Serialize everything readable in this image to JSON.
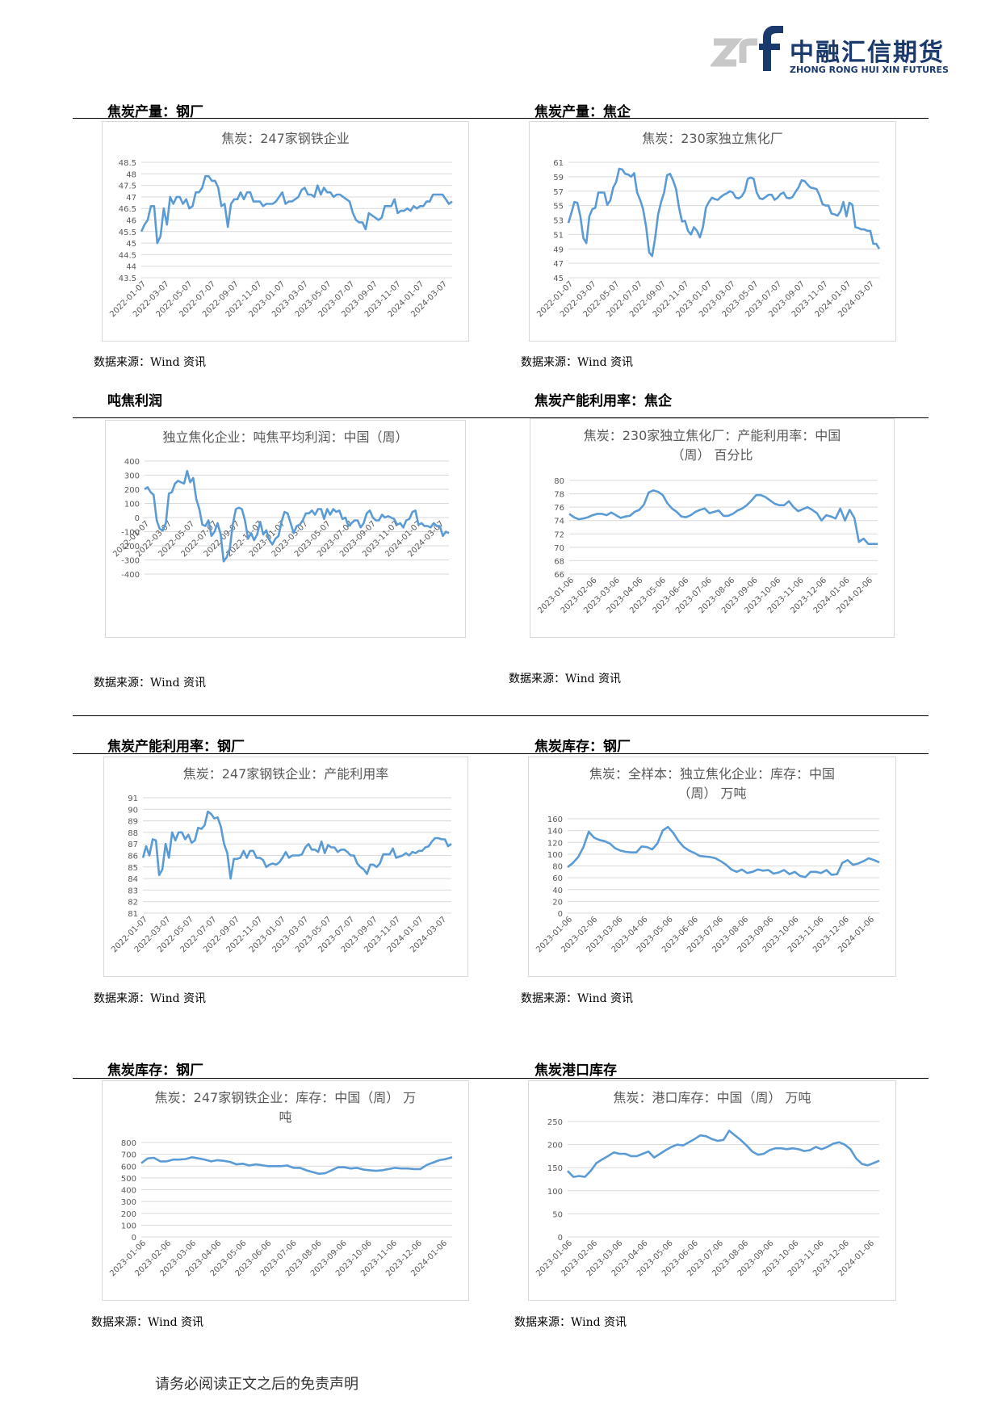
{
  "header": {
    "logo_cn": "中融汇信期货",
    "logo_en": "ZHONG RONG HUI XIN FUTURES",
    "logo_mark": "zrf"
  },
  "sections": [
    {
      "title": "焦炭产量：钢厂",
      "source": "数据来源：Wind 资讯"
    },
    {
      "title": "焦炭产量：焦企",
      "source": "数据来源：Wind 资讯"
    },
    {
      "title": "吨焦利润",
      "source": "数据来源：Wind 资讯"
    },
    {
      "title": "焦炭产能利用率：焦企",
      "source": "数据来源：Wind 资讯"
    },
    {
      "title": "焦炭产能利用率：钢厂",
      "source": "数据来源：Wind 资讯"
    },
    {
      "title": "焦炭库存：钢厂",
      "source": "数据来源：Wind 资讯"
    },
    {
      "title": "焦炭库存：钢厂",
      "source": "数据来源：Wind 资讯"
    },
    {
      "title": "焦炭港口库存",
      "source": "数据来源：Wind 资讯"
    }
  ],
  "footer": "请务必阅读正文之后的免责声明",
  "colors": {
    "line": "#5b9bd5",
    "grid": "#d9d9d9",
    "axis_text": "#595959",
    "brand": "#1a3a6e"
  },
  "chart_data": [
    {
      "type": "line",
      "title": [
        "焦炭：247家钢铁企业"
      ],
      "ylim": [
        43.5,
        48.5
      ],
      "yticks": [
        43.5,
        44,
        44.5,
        45,
        45.5,
        46,
        46.5,
        47,
        47.5,
        48,
        48.5
      ],
      "xticks": [
        "2022-01-07",
        "2022-03-07",
        "2022-05-07",
        "2022-07-07",
        "2022-09-07",
        "2022-11-07",
        "2023-01-07",
        "2023-03-07",
        "2023-05-07",
        "2023-07-07",
        "2023-09-07",
        "2023-11-07",
        "2024-01-07",
        "2024-03-07"
      ],
      "values": [
        45.5,
        45.8,
        46.0,
        46.6,
        46.6,
        45.0,
        45.3,
        46.5,
        45.8,
        47.0,
        46.7,
        47.0,
        47.0,
        46.7,
        46.9,
        46.5,
        46.6,
        47.2,
        47.2,
        47.4,
        47.9,
        47.9,
        47.7,
        47.7,
        47.4,
        46.6,
        46.7,
        45.7,
        46.7,
        46.9,
        46.9,
        47.2,
        46.9,
        47.2,
        47.2,
        46.8,
        46.8,
        46.8,
        46.6,
        46.7,
        46.7,
        46.7,
        46.8,
        47.0,
        47.2,
        46.7,
        46.8,
        46.8,
        46.9,
        47.0,
        47.3,
        47.4,
        47.1,
        47.1,
        47.0,
        47.5,
        47.1,
        47.4,
        47.2,
        47.2,
        47.0,
        47.1,
        47.1,
        47.0,
        46.9,
        46.8,
        46.3,
        46.0,
        45.9,
        45.9,
        45.6,
        46.3,
        46.2,
        46.1,
        46.0,
        46.1,
        46.6,
        46.6,
        46.6,
        46.9,
        46.3,
        46.4,
        46.4,
        46.5,
        46.4,
        46.6,
        46.5,
        46.6,
        46.6,
        46.8,
        46.8,
        47.1,
        47.1,
        47.1,
        47.1,
        46.9,
        46.7,
        46.8
      ]
    },
    {
      "type": "line",
      "title": [
        "焦炭：230家独立焦化厂"
      ],
      "ylim": [
        45,
        61
      ],
      "yticks": [
        45,
        47,
        49,
        51,
        53,
        55,
        57,
        59,
        61
      ],
      "xticks": [
        "2022-01-07",
        "2022-03-07",
        "2022-05-07",
        "2022-07-07",
        "2022-09-07",
        "2022-11-07",
        "2023-01-07",
        "2023-03-07",
        "2023-05-07",
        "2023-07-07",
        "2023-09-07",
        "2023-11-07",
        "2024-01-07",
        "2024-03-07"
      ],
      "values": [
        52.6,
        54.0,
        55.5,
        55.4,
        53.5,
        50.5,
        49.8,
        53.5,
        54.5,
        54.7,
        56.8,
        56.8,
        56.8,
        55.1,
        55.7,
        57.5,
        58.3,
        60.1,
        60.0,
        59.4,
        59.3,
        59.0,
        59.5,
        56.8,
        55.8,
        54.5,
        52.0,
        48.5,
        48.0,
        50.5,
        53.8,
        55.5,
        56.8,
        59.2,
        59.4,
        58.5,
        57.3,
        54.7,
        52.8,
        52.9,
        51.5,
        51.0,
        52.0,
        51.5,
        50.6,
        52.0,
        54.7,
        55.5,
        56.1,
        55.9,
        55.8,
        56.2,
        56.5,
        56.7,
        57.0,
        56.8,
        56.1,
        56.0,
        56.3,
        57.0,
        58.7,
        58.9,
        58.7,
        56.8,
        56.0,
        55.9,
        56.2,
        56.5,
        56.5,
        55.8,
        56.1,
        56.6,
        56.8,
        56.1,
        56.0,
        56.2,
        56.9,
        57.5,
        58.5,
        58.4,
        57.9,
        57.5,
        57.4,
        57.3,
        56.4,
        55.2,
        55.0,
        55.0,
        53.9,
        53.8,
        53.6,
        54.2,
        55.5,
        53.5,
        55.4,
        55.1,
        52.0,
        51.9,
        51.7,
        51.7,
        51.5,
        51.5,
        49.7,
        49.7,
        49.0
      ]
    },
    {
      "type": "line",
      "title": [
        "独立焦化企业：吨焦平均利润：中国（周）"
      ],
      "ylim": [
        -400,
        400
      ],
      "yticks": [
        -400,
        -300,
        -200,
        -100,
        0,
        100,
        200,
        300,
        400
      ],
      "xticks": [
        "2022-01-07",
        "2022-03-07",
        "2022-05-07",
        "2022-07-07",
        "2022-09-07",
        "2022-11-07",
        "2023-01-07",
        "2023-03-07",
        "2023-05-07",
        "2023-07-07",
        "2023-09-07",
        "2023-11-07",
        "2024-01-07",
        "2024-03-07"
      ],
      "values": [
        200,
        215,
        180,
        160,
        -20,
        -80,
        -90,
        -40,
        170,
        180,
        240,
        260,
        250,
        240,
        330,
        250,
        280,
        130,
        60,
        -50,
        -60,
        -20,
        -130,
        -100,
        -40,
        -120,
        -310,
        -280,
        -220,
        -50,
        60,
        70,
        60,
        -20,
        -150,
        -110,
        -160,
        -120,
        -30,
        -120,
        -90,
        -160,
        -190,
        -150,
        -130,
        -30,
        40,
        30,
        -40,
        -110,
        -60,
        -50,
        -20,
        30,
        30,
        50,
        20,
        60,
        60,
        -10,
        60,
        20,
        60,
        40,
        50,
        -10,
        0,
        -60,
        -40,
        -20,
        -20,
        -70,
        -40,
        30,
        50,
        0,
        -20,
        -20,
        20,
        0,
        10,
        0,
        -10,
        -50,
        -40,
        -70,
        -20,
        -10,
        40,
        50,
        -50,
        -40,
        -60,
        -60,
        -70,
        -40,
        -60,
        -60,
        -130,
        -100,
        -110
      ]
    },
    {
      "type": "line",
      "title": [
        "焦炭：230家独立焦化厂：产能利用率：中国",
        "（周）  百分比"
      ],
      "ylim": [
        66,
        80
      ],
      "yticks": [
        66,
        68,
        70,
        72,
        74,
        76,
        78,
        80
      ],
      "xticks": [
        "2023-01-06",
        "2023-02-06",
        "2023-03-06",
        "2023-04-06",
        "2023-05-06",
        "2023-06-06",
        "2023-07-06",
        "2023-08-06",
        "2023-09-06",
        "2023-10-06",
        "2023-11-06",
        "2023-12-06",
        "2024-01-06",
        "2024-02-06"
      ],
      "values": [
        75.0,
        74.5,
        74.2,
        74.3,
        74.5,
        74.8,
        75.0,
        75.0,
        74.8,
        75.2,
        74.8,
        74.4,
        74.6,
        74.7,
        75.3,
        75.6,
        76.4,
        78.2,
        78.5,
        78.3,
        77.8,
        76.6,
        75.8,
        75.3,
        74.6,
        74.5,
        74.8,
        75.3,
        75.6,
        75.8,
        75.1,
        75.3,
        75.5,
        74.7,
        74.7,
        75.0,
        75.5,
        75.8,
        76.3,
        77.0,
        77.8,
        77.8,
        77.5,
        77.0,
        76.5,
        76.3,
        76.3,
        76.9,
        76.0,
        75.4,
        75.7,
        76.0,
        75.6,
        75.1,
        74.0,
        74.8,
        74.6,
        74.3,
        75.8,
        74.0,
        75.6,
        74.4,
        70.8,
        71.3,
        70.5,
        70.5,
        70.5
      ]
    },
    {
      "type": "line",
      "title": [
        "焦炭：247家钢铁企业：产能利用率"
      ],
      "ylim": [
        81,
        91
      ],
      "yticks": [
        81,
        82,
        83,
        84,
        85,
        86,
        87,
        88,
        89,
        90,
        91
      ],
      "xticks": [
        "2022-01-07",
        "2022-03-07",
        "2022-05-07",
        "2022-07-07",
        "2022-09-07",
        "2022-11-07",
        "2023-01-07",
        "2023-03-07",
        "2023-05-07",
        "2023-07-07",
        "2023-09-07",
        "2023-11-07",
        "2024-01-07",
        "2024-03-07"
      ],
      "values": [
        85.8,
        86.8,
        86.0,
        87.4,
        87.3,
        84.3,
        84.8,
        87.0,
        85.8,
        88.0,
        87.3,
        88.0,
        88.0,
        87.4,
        87.8,
        87.1,
        87.3,
        88.4,
        88.3,
        88.6,
        89.8,
        89.6,
        89.2,
        89.3,
        88.5,
        87.0,
        86.2,
        84.0,
        85.7,
        85.7,
        85.8,
        86.4,
        85.8,
        86.4,
        86.4,
        85.8,
        85.8,
        85.6,
        85.0,
        85.2,
        85.3,
        85.2,
        85.4,
        85.8,
        86.3,
        85.8,
        86.0,
        86.0,
        86.0,
        86.1,
        86.7,
        87.0,
        86.5,
        86.5,
        86.3,
        87.2,
        86.2,
        86.9,
        86.7,
        86.7,
        86.3,
        86.5,
        86.5,
        86.3,
        86.0,
        86.0,
        85.3,
        85.0,
        84.8,
        84.4,
        85.2,
        85.2,
        85.0,
        85.3,
        86.1,
        86.1,
        86.1,
        86.6,
        85.8,
        85.9,
        86.0,
        86.2,
        86.0,
        86.3,
        86.2,
        86.4,
        86.4,
        86.7,
        86.8,
        87.2,
        87.5,
        87.5,
        87.4,
        87.4,
        86.8,
        87.0
      ]
    },
    {
      "type": "line",
      "title": [
        "焦炭：全样本：独立焦化企业：库存：中国",
        "（周） 万吨"
      ],
      "ylim": [
        0,
        160
      ],
      "yticks": [
        0,
        20,
        40,
        60,
        80,
        100,
        120,
        140,
        160
      ],
      "xticks": [
        "2023-01-06",
        "2023-02-06",
        "2023-03-06",
        "2023-04-06",
        "2023-05-06",
        "2023-06-06",
        "2023-07-06",
        "2023-08-06",
        "2023-09-06",
        "2023-10-06",
        "2023-11-06",
        "2023-12-06",
        "2024-01-06"
      ],
      "values": [
        78,
        85,
        95,
        112,
        138,
        128,
        124,
        122,
        118,
        110,
        106,
        104,
        103,
        103,
        113,
        112,
        108,
        118,
        140,
        146,
        136,
        122,
        112,
        106,
        102,
        97,
        96,
        95,
        93,
        88,
        82,
        74,
        70,
        74,
        68,
        70,
        74,
        72,
        73,
        67,
        69,
        73,
        66,
        70,
        63,
        61,
        70,
        70,
        68,
        73,
        65,
        66,
        85,
        90,
        82,
        84,
        88,
        93,
        90,
        86
      ]
    },
    {
      "type": "line",
      "title": [
        "焦炭：247家钢铁企业：库存：中国（周） 万",
        "吨"
      ],
      "ylim": [
        0,
        800
      ],
      "yticks": [
        0,
        100,
        200,
        300,
        400,
        500,
        600,
        700,
        800
      ],
      "xticks": [
        "2023-01-06",
        "2023-02-06",
        "2023-03-06",
        "2023-04-06",
        "2023-05-06",
        "2023-06-06",
        "2023-07-06",
        "2023-08-06",
        "2023-09-06",
        "2023-10-06",
        "2023-11-06",
        "2023-12-06",
        "2024-01-06"
      ],
      "values": [
        625,
        665,
        670,
        640,
        640,
        655,
        655,
        660,
        675,
        665,
        655,
        640,
        650,
        645,
        635,
        615,
        620,
        605,
        615,
        608,
        600,
        600,
        600,
        605,
        585,
        585,
        565,
        550,
        535,
        540,
        565,
        590,
        590,
        580,
        585,
        570,
        565,
        560,
        565,
        575,
        585,
        580,
        580,
        575,
        575,
        610,
        630,
        650,
        660,
        675
      ]
    },
    {
      "type": "line",
      "title": [
        "焦炭：港口库存：中国（周） 万吨"
      ],
      "ylim": [
        0,
        250
      ],
      "yticks": [
        0,
        50,
        100,
        150,
        200,
        250
      ],
      "xticks": [
        "2023-01-06",
        "2023-02-06",
        "2023-03-06",
        "2023-04-06",
        "2023-05-06",
        "2023-06-06",
        "2023-07-06",
        "2023-08-06",
        "2023-09-06",
        "2023-10-06",
        "2023-11-06",
        "2023-12-06",
        "2024-01-06"
      ],
      "values": [
        143,
        130,
        132,
        130,
        143,
        160,
        168,
        175,
        183,
        180,
        180,
        175,
        175,
        180,
        185,
        172,
        180,
        188,
        195,
        200,
        198,
        205,
        212,
        220,
        218,
        212,
        208,
        210,
        230,
        220,
        210,
        198,
        185,
        178,
        180,
        188,
        192,
        192,
        190,
        192,
        190,
        186,
        188,
        195,
        190,
        195,
        202,
        205,
        200,
        190,
        170,
        158,
        155,
        160,
        165
      ]
    }
  ]
}
